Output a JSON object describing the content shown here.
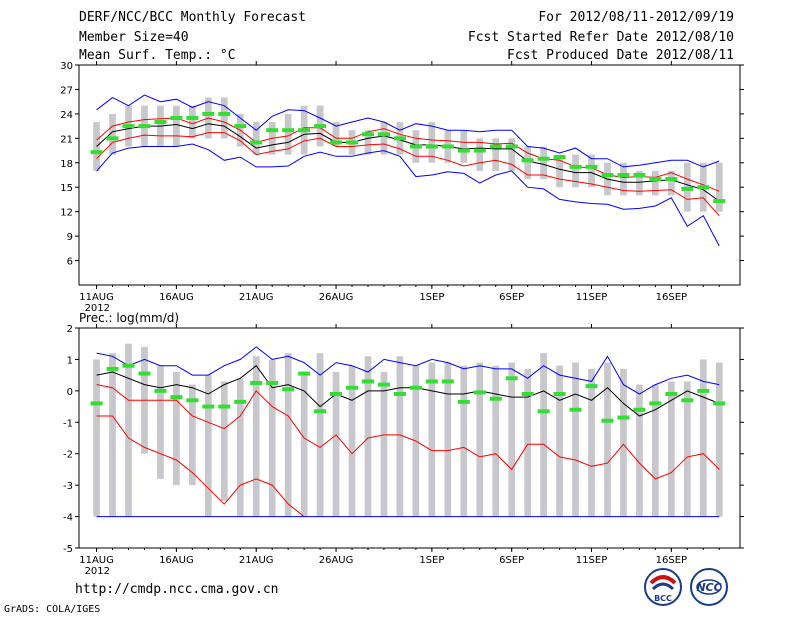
{
  "header": {
    "title": "DERF/NCC/BCC Monthly Forecast",
    "member": "Member Size=40",
    "variable": "Mean Surf. Temp.: °C",
    "period": "For 2012/08/11-2012/09/19",
    "started": "Fcst Started Refer Date 2012/08/10",
    "produced": "Fcst Produced Date 2012/08/11"
  },
  "footer": {
    "url": "http://cmdp.ncc.cma.gov.cn",
    "credit": "GrADS: COLA/IGES"
  },
  "logos": {
    "bcc": "BCC",
    "ncc": "NCC"
  },
  "colors": {
    "blue": "#0000ff",
    "red": "#ff0000",
    "black": "#000000",
    "green": "#33dd33",
    "box": "#c8c8cc"
  },
  "chart_data": [
    {
      "type": "line",
      "title": "Mean Surf. Temp.: °C",
      "ylabel": "°C",
      "ylim": [
        3,
        30
      ],
      "yticks": [
        6,
        9,
        12,
        15,
        18,
        21,
        24,
        27,
        30
      ],
      "xticks": [
        "11AUG",
        "16AUG",
        "21AUG",
        "26AUG",
        "1SEP",
        "6SEP",
        "11SEP",
        "16SEP"
      ],
      "xtick_days": [
        1,
        6,
        11,
        16,
        22,
        27,
        32,
        37
      ],
      "year_label": "2012",
      "x_days": [
        1,
        2,
        3,
        4,
        5,
        6,
        7,
        8,
        9,
        10,
        11,
        12,
        13,
        14,
        15,
        16,
        17,
        18,
        19,
        20,
        21,
        22,
        23,
        24,
        25,
        26,
        27,
        28,
        29,
        30,
        31,
        32,
        33,
        34,
        35,
        36,
        37,
        38,
        39,
        40
      ],
      "box_low": [
        17,
        19,
        20,
        20,
        20,
        20,
        21,
        21,
        21,
        20,
        19,
        19,
        19,
        19,
        20,
        20,
        19,
        19,
        19,
        19,
        18,
        18,
        18,
        18,
        17,
        17,
        17,
        16,
        16,
        15,
        15,
        15,
        14,
        14,
        14,
        14,
        14,
        12,
        12,
        12
      ],
      "box_high": [
        23,
        24,
        25,
        25,
        25,
        25,
        25,
        26,
        26,
        24,
        23,
        23,
        24,
        25,
        25,
        23,
        22,
        22,
        23,
        23,
        22,
        23,
        22,
        22,
        21,
        21,
        21,
        20,
        20,
        19,
        19,
        19,
        18,
        18,
        17,
        17,
        17,
        18,
        18,
        18
      ],
      "observed": [
        19.3,
        21,
        22.5,
        22.5,
        23,
        23.5,
        23.5,
        24,
        24,
        22.5,
        20.5,
        22,
        22,
        22,
        22.5,
        20.5,
        20.5,
        21.5,
        21.5,
        21,
        20,
        20,
        20,
        19.5,
        19.5,
        20,
        20,
        18.3,
        18.5,
        18.7,
        17.5,
        17.5,
        16.5,
        16.5,
        16.5,
        16,
        16,
        14.8,
        15,
        13.3
      ],
      "series": [
        {
          "name": "max",
          "color": "blue",
          "values": [
            24.5,
            26,
            25,
            26.3,
            25.5,
            25.8,
            24.8,
            25.5,
            25,
            23.5,
            22,
            23.7,
            24.5,
            24.4,
            23.5,
            22.5,
            23,
            23.5,
            23,
            22,
            22.8,
            22.5,
            22,
            22,
            21.8,
            22,
            22,
            20,
            19.8,
            19.2,
            19.8,
            18.5,
            18.5,
            17.5,
            17.7,
            18,
            18.3,
            18.3,
            17.5,
            18.2
          ]
        },
        {
          "name": "upper",
          "color": "red",
          "values": [
            20.8,
            22.5,
            23,
            23.3,
            23.4,
            23.5,
            22.8,
            23.5,
            23,
            22,
            20.5,
            21,
            21.3,
            22.3,
            22.3,
            21,
            21,
            21.8,
            22.2,
            21.5,
            21,
            20.8,
            20.7,
            20.5,
            20.5,
            20.3,
            20.4,
            19.2,
            18.5,
            18.3,
            17.5,
            17.4,
            16.5,
            16.2,
            16.3,
            16.2,
            16.8,
            16,
            15.3,
            14.5
          ]
        },
        {
          "name": "mean",
          "color": "black",
          "values": [
            20,
            21.8,
            22.2,
            22.5,
            22.5,
            22.7,
            22.2,
            22.8,
            22.5,
            21.2,
            19.8,
            20.2,
            20.5,
            21.5,
            21.6,
            20.5,
            20.5,
            21,
            21.3,
            20.8,
            20.2,
            20.2,
            20,
            19.7,
            19.8,
            19.7,
            19.7,
            18.2,
            17.8,
            17.2,
            16.8,
            16.8,
            16,
            15.6,
            15.6,
            15.8,
            15.9,
            15.3,
            14.7,
            13.3
          ]
        },
        {
          "name": "lower",
          "color": "red",
          "values": [
            18.5,
            20.5,
            21,
            21.4,
            21.3,
            21.3,
            21.2,
            21.7,
            21.7,
            20.7,
            19,
            19.4,
            19.7,
            20.7,
            21,
            20,
            20,
            20.2,
            20.3,
            19.7,
            18.8,
            18.8,
            18.3,
            17.6,
            18,
            18.3,
            17.8,
            16.5,
            16.5,
            16,
            15.7,
            15.4,
            15,
            14.6,
            14.5,
            14.6,
            14.7,
            13.5,
            13.7,
            11.5
          ]
        },
        {
          "name": "min",
          "color": "blue",
          "values": [
            17,
            19.2,
            19.8,
            20,
            20,
            20,
            20.3,
            19.6,
            18.3,
            18.7,
            17.5,
            17.5,
            17.6,
            18.8,
            19.3,
            18.8,
            18.8,
            19.2,
            19.5,
            18.8,
            16.3,
            16.5,
            16.9,
            16.7,
            15.5,
            16.5,
            17,
            15,
            14.8,
            13.5,
            13.2,
            13,
            12.9,
            12.3,
            12.4,
            12.7,
            13.7,
            10.2,
            11.5,
            7.8
          ]
        }
      ]
    },
    {
      "type": "line",
      "title": "Prec.: log(mm/d)",
      "ylabel": "log(mm/d)",
      "ylim": [
        -5,
        2
      ],
      "yticks": [
        -5,
        -4,
        -3,
        -2,
        -1,
        0,
        1,
        2
      ],
      "xticks": [
        "11AUG",
        "16AUG",
        "21AUG",
        "26AUG",
        "1SEP",
        "6SEP",
        "11SEP",
        "16SEP"
      ],
      "xtick_days": [
        1,
        6,
        11,
        16,
        22,
        27,
        32,
        37
      ],
      "year_label": "2012",
      "x_days": [
        1,
        2,
        3,
        4,
        5,
        6,
        7,
        8,
        9,
        10,
        11,
        12,
        13,
        14,
        15,
        16,
        17,
        18,
        19,
        20,
        21,
        22,
        23,
        24,
        25,
        26,
        27,
        28,
        29,
        30,
        31,
        32,
        33,
        34,
        35,
        36,
        37,
        38,
        39,
        40
      ],
      "box_low": [
        -4,
        -4,
        -4,
        -2,
        -2.8,
        -3,
        -3,
        -4,
        -3.5,
        -4,
        -4,
        -4,
        -4,
        -4,
        -4,
        -4,
        -4,
        -4,
        -4,
        -4,
        -4,
        -4,
        -4,
        -4,
        -4,
        -4,
        -4,
        -4,
        -4,
        -4,
        -4,
        -4,
        -4,
        -4,
        -4,
        -4,
        -4,
        -4,
        -4,
        -4
      ],
      "box_high": [
        1,
        1.2,
        1.5,
        1.4,
        0.8,
        0.6,
        0.2,
        0.5,
        0.3,
        0.4,
        1.1,
        1,
        1.2,
        0.6,
        1.2,
        0.6,
        0.8,
        1.1,
        0.6,
        1.1,
        0.8,
        0.9,
        0.9,
        0.8,
        0.9,
        0.8,
        0.9,
        0.7,
        1.2,
        0.8,
        0.9,
        0.7,
        0.9,
        0.7,
        0.2,
        0.2,
        0.3,
        0.3,
        1,
        0.9
      ],
      "observed": [
        -0.4,
        0.7,
        0.8,
        0.55,
        0,
        -0.2,
        -0.3,
        -0.5,
        -0.5,
        -0.35,
        0.25,
        0.25,
        0.05,
        0.55,
        -0.65,
        -0.1,
        0.1,
        0.3,
        0.2,
        -0.1,
        0.1,
        0.3,
        0.3,
        -0.35,
        -0.05,
        -0.25,
        0.4,
        -0.1,
        -0.65,
        -0.1,
        -0.6,
        0.15,
        -0.95,
        -0.85,
        -0.6,
        -0.4,
        -0.1,
        -0.3,
        0,
        -0.4
      ],
      "series": [
        {
          "name": "max",
          "color": "blue",
          "values": [
            1.2,
            1.1,
            0.8,
            1,
            0.8,
            0.8,
            0.5,
            0.5,
            0.8,
            1,
            1.4,
            1,
            1.1,
            0.9,
            0.5,
            0.9,
            0.8,
            0.6,
            1,
            0.9,
            0.8,
            1,
            0.9,
            0.7,
            0.8,
            0.7,
            0.7,
            0.4,
            0.8,
            0.5,
            0.4,
            0.3,
            1.1,
            0.2,
            -0.1,
            0.2,
            0.4,
            0.5,
            0.3,
            0.2
          ]
        },
        {
          "name": "mean",
          "color": "black",
          "values": [
            0.5,
            0.6,
            0.4,
            0.2,
            0.1,
            0.2,
            0.1,
            -0.1,
            0.2,
            0.4,
            0.8,
            0.1,
            0.2,
            0,
            -0.5,
            -0.1,
            -0.3,
            0,
            0,
            0.1,
            0.1,
            0,
            -0.1,
            -0.1,
            0,
            -0.1,
            -0.2,
            -0.2,
            0,
            -0.3,
            -0.1,
            -0.3,
            0.1,
            -0.4,
            -0.8,
            -0.6,
            -0.3,
            0,
            -0.2,
            -0.4
          ]
        },
        {
          "name": "upper",
          "color": "red",
          "values": [
            0.2,
            0.1,
            -0.3,
            -0.3,
            -0.3,
            -0.3,
            -0.8,
            -1,
            -1.2,
            -0.8,
            0,
            -0.5,
            -0.8,
            -1.5,
            -1.8,
            -1.4,
            -2,
            -1.5,
            -1.4,
            -1.4,
            -1.6,
            -1.9,
            -1.9,
            -1.8,
            -2.1,
            -2,
            -2.5,
            -1.7,
            -1.7,
            -2.1,
            -2.2,
            -2.4,
            -2.3,
            -1.7,
            -2.3,
            -2.8,
            -2.6,
            -2.1,
            -2,
            -2.5
          ]
        },
        {
          "name": "lower",
          "color": "red",
          "values": [
            -0.8,
            -0.8,
            -1.5,
            -1.8,
            -2,
            -2.2,
            -2.6,
            -3.1,
            -3.6,
            -3,
            -2.8,
            -3,
            -3.6,
            -4,
            null,
            null,
            null,
            null,
            null,
            null,
            null,
            null,
            null,
            null,
            null,
            null,
            null,
            null,
            null,
            null,
            null,
            null,
            null,
            null,
            null,
            null,
            null,
            null,
            null,
            null
          ]
        },
        {
          "name": "min",
          "color": "blue",
          "values": [
            -4,
            -4,
            -4,
            -4,
            -4,
            -4,
            -4,
            -4,
            -4,
            -4,
            -4,
            -4,
            -4,
            -4,
            -4,
            -4,
            -4,
            -4,
            -4,
            -4,
            -4,
            -4,
            -4,
            -4,
            -4,
            -4,
            -4,
            -4,
            -4,
            -4,
            -4,
            -4,
            -4,
            -4,
            -4,
            -4,
            -4,
            -4,
            -4,
            -4
          ]
        }
      ]
    }
  ]
}
